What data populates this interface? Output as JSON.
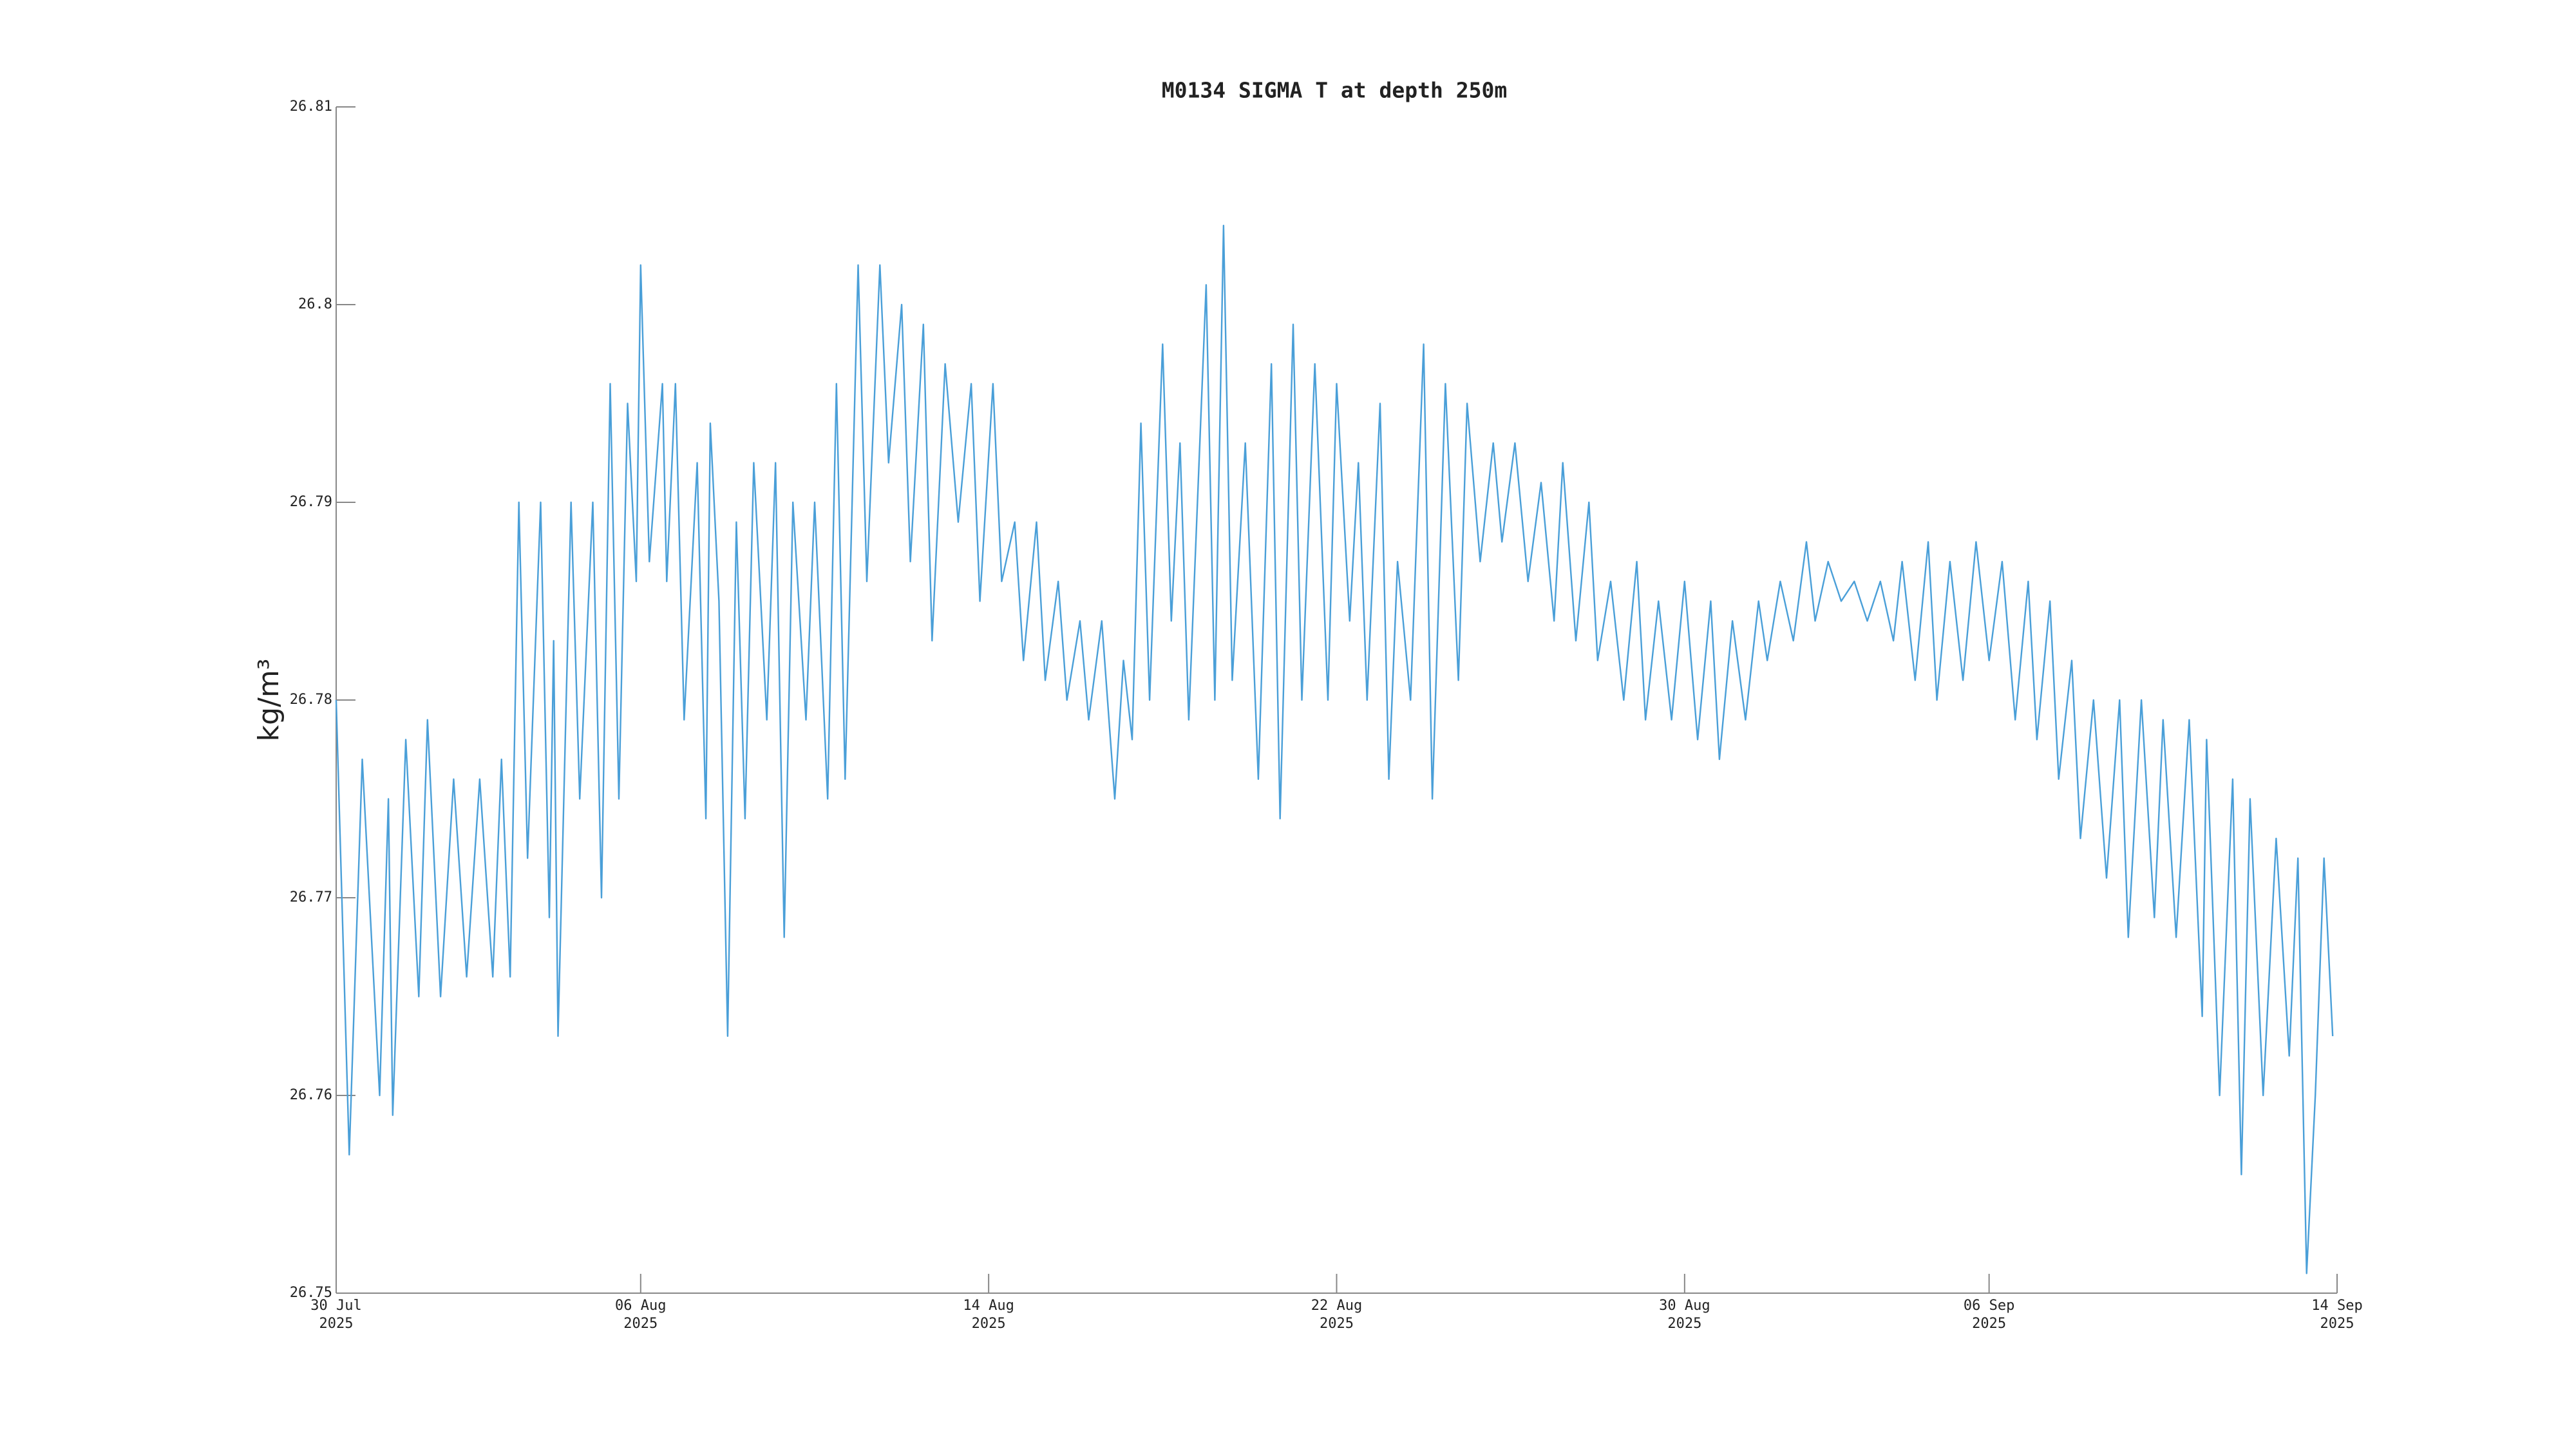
{
  "chart_data": {
    "type": "line",
    "title": "M0134 SIGMA T at depth 250m",
    "y_label": "kg/m³",
    "x": [
      0,
      0.3,
      0.6,
      1.0,
      1.2,
      1.3,
      1.6,
      1.9,
      2.1,
      2.4,
      2.7,
      3.0,
      3.3,
      3.6,
      3.8,
      4.0,
      4.2,
      4.4,
      4.7,
      4.9,
      5.0,
      5.1,
      5.4,
      5.6,
      5.9,
      6.1,
      6.3,
      6.5,
      6.7,
      6.9,
      7.0,
      7.2,
      7.5,
      7.6,
      7.8,
      8.0,
      8.3,
      8.5,
      8.6,
      8.8,
      9.0,
      9.2,
      9.4,
      9.6,
      9.9,
      10.1,
      10.3,
      10.5,
      10.8,
      11.0,
      11.3,
      11.5,
      11.7,
      12.0,
      12.2,
      12.5,
      12.7,
      13.0,
      13.2,
      13.5,
      13.7,
      14.0,
      14.3,
      14.6,
      14.8,
      15.1,
      15.3,
      15.6,
      15.8,
      16.1,
      16.3,
      16.6,
      16.8,
      17.1,
      17.3,
      17.6,
      17.9,
      18.1,
      18.3,
      18.5,
      18.7,
      19.0,
      19.2,
      19.4,
      19.6,
      20.0,
      20.2,
      20.4,
      20.6,
      20.9,
      21.2,
      21.5,
      21.7,
      22.0,
      22.2,
      22.5,
      22.8,
      23.0,
      23.3,
      23.5,
      23.7,
      24.0,
      24.2,
      24.4,
      24.7,
      25.0,
      25.2,
      25.5,
      25.8,
      26.0,
      26.3,
      26.6,
      26.8,
      27.1,
      27.4,
      27.7,
      28.0,
      28.2,
      28.5,
      28.8,
      29.0,
      29.3,
      29.6,
      29.9,
      30.1,
      30.4,
      30.7,
      31.0,
      31.3,
      31.6,
      31.8,
      32.1,
      32.4,
      32.7,
      32.9,
      33.2,
      33.5,
      33.8,
      34.0,
      34.3,
      34.6,
      34.9,
      35.2,
      35.5,
      35.8,
      36.0,
      36.3,
      36.6,
      36.8,
      37.1,
      37.4,
      37.7,
      38.0,
      38.3,
      38.6,
      38.9,
      39.1,
      39.4,
      39.6,
      39.9,
      40.1,
      40.4,
      40.7,
      41.0,
      41.2,
      41.5,
      41.8,
      42.0,
      42.3,
      42.6,
      42.9,
      43.0,
      43.3,
      43.6,
      43.8,
      44.0,
      44.3,
      44.6,
      44.9,
      45.1,
      45.3,
      45.5,
      45.7,
      45.9
    ],
    "series": [
      {
        "color": "#4a9fd8",
        "values": [
          26.78,
          26.757,
          26.777,
          26.76,
          26.775,
          26.759,
          26.778,
          26.765,
          26.779,
          26.765,
          26.776,
          26.766,
          26.776,
          26.766,
          26.777,
          26.766,
          26.79,
          26.772,
          26.79,
          26.769,
          26.783,
          26.763,
          26.79,
          26.775,
          26.79,
          26.77,
          26.796,
          26.775,
          26.795,
          26.786,
          26.802,
          26.787,
          26.796,
          26.786,
          26.796,
          26.779,
          26.792,
          26.774,
          26.794,
          26.785,
          26.763,
          26.789,
          26.774,
          26.792,
          26.779,
          26.792,
          26.768,
          26.79,
          26.779,
          26.79,
          26.775,
          26.796,
          26.776,
          26.802,
          26.786,
          26.802,
          26.792,
          26.8,
          26.787,
          26.799,
          26.783,
          26.797,
          26.789,
          26.796,
          26.785,
          26.796,
          26.786,
          26.789,
          26.782,
          26.789,
          26.781,
          26.786,
          26.78,
          26.784,
          26.779,
          26.784,
          26.775,
          26.782,
          26.778,
          26.794,
          26.78,
          26.798,
          26.784,
          26.793,
          26.779,
          26.801,
          26.78,
          26.804,
          26.781,
          26.793,
          26.776,
          26.797,
          26.774,
          26.799,
          26.78,
          26.797,
          26.78,
          26.796,
          26.784,
          26.792,
          26.78,
          26.795,
          26.776,
          26.787,
          26.78,
          26.798,
          26.775,
          26.796,
          26.781,
          26.795,
          26.787,
          26.793,
          26.788,
          26.793,
          26.786,
          26.791,
          26.784,
          26.792,
          26.783,
          26.79,
          26.782,
          26.786,
          26.78,
          26.787,
          26.779,
          26.785,
          26.779,
          26.786,
          26.778,
          26.785,
          26.777,
          26.784,
          26.779,
          26.785,
          26.782,
          26.786,
          26.783,
          26.788,
          26.784,
          26.787,
          26.785,
          26.786,
          26.784,
          26.786,
          26.783,
          26.787,
          26.781,
          26.788,
          26.78,
          26.787,
          26.781,
          26.788,
          26.782,
          26.787,
          26.779,
          26.786,
          26.778,
          26.785,
          26.776,
          26.782,
          26.773,
          26.78,
          26.771,
          26.78,
          26.768,
          26.78,
          26.769,
          26.779,
          26.768,
          26.779,
          26.764,
          26.778,
          26.76,
          26.776,
          26.756,
          26.775,
          26.76,
          26.773,
          26.762,
          26.772,
          26.751,
          26.76,
          26.772,
          26.763
        ]
      }
    ],
    "xlim": [
      0,
      46
    ],
    "xticks": [
      {
        "value": 0,
        "label": "30 Jul\n2025"
      },
      {
        "value": 7,
        "label": "06 Aug\n2025"
      },
      {
        "value": 15,
        "label": "14 Aug\n2025"
      },
      {
        "value": 23,
        "label": "22 Aug\n2025"
      },
      {
        "value": 31,
        "label": "30 Aug\n2025"
      },
      {
        "value": 38,
        "label": "06 Sep\n2025"
      },
      {
        "value": 46,
        "label": "14 Sep\n2025"
      }
    ],
    "ylim": [
      26.75,
      26.81
    ],
    "yticks": [
      26.75,
      26.76,
      26.77,
      26.78,
      26.79,
      26.8,
      26.81
    ]
  }
}
